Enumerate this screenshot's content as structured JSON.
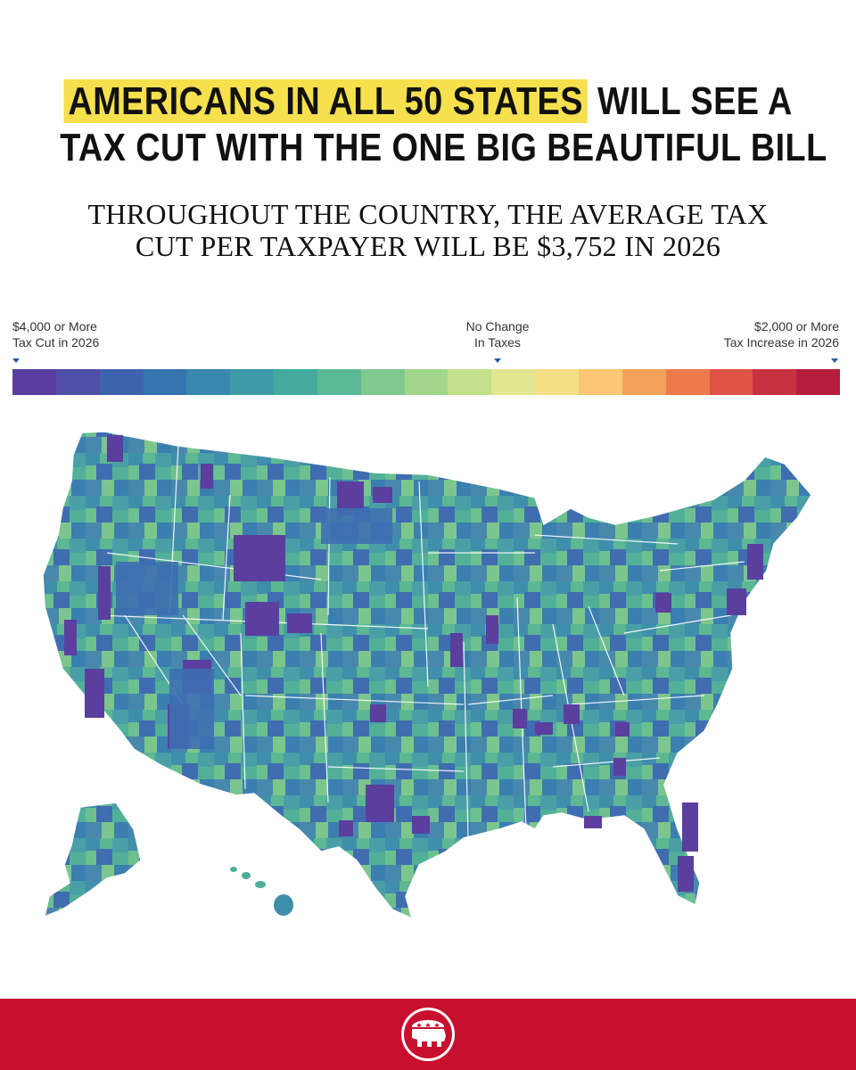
{
  "headline": {
    "highlight": "AMERICANS IN ALL 50 STATES",
    "line1_rest": "WILL SEE A",
    "line2": "TAX CUT WITH THE ONE BIG BEAUTIFUL BILL"
  },
  "subheadline": {
    "line1": "THROUGHOUT THE COUNTRY, THE AVERAGE TAX",
    "line2": "CUT PER TAXPAYER WILL BE $3,752 IN 2026"
  },
  "legend": {
    "left": {
      "line1": "$4,000 or More",
      "line2": "Tax Cut in 2026"
    },
    "center": {
      "line1": "No Change",
      "line2": "In Taxes"
    },
    "right": {
      "line1": "$2,000 or More",
      "line2": "Tax Increase in 2026"
    },
    "scale_colors": [
      "#5b3fa0",
      "#4f4fa8",
      "#3f62ad",
      "#3674b0",
      "#3a88ae",
      "#3f9aa8",
      "#45aa9e",
      "#5bba95",
      "#80c98e",
      "#a2d68c",
      "#c4e08c",
      "#e2e690",
      "#f4df86",
      "#f9c775",
      "#f4a25c",
      "#ec7a4c",
      "#df5345",
      "#c83240",
      "#b51d3e"
    ],
    "marker_color": "#2a5a9e"
  },
  "map": {
    "base_color": "#4fae9b",
    "border_color": "#ffffff",
    "ocean_color": "#ffffff"
  },
  "footer": {
    "color": "#c8102e",
    "logo_icon": "republican-elephant-icon"
  }
}
